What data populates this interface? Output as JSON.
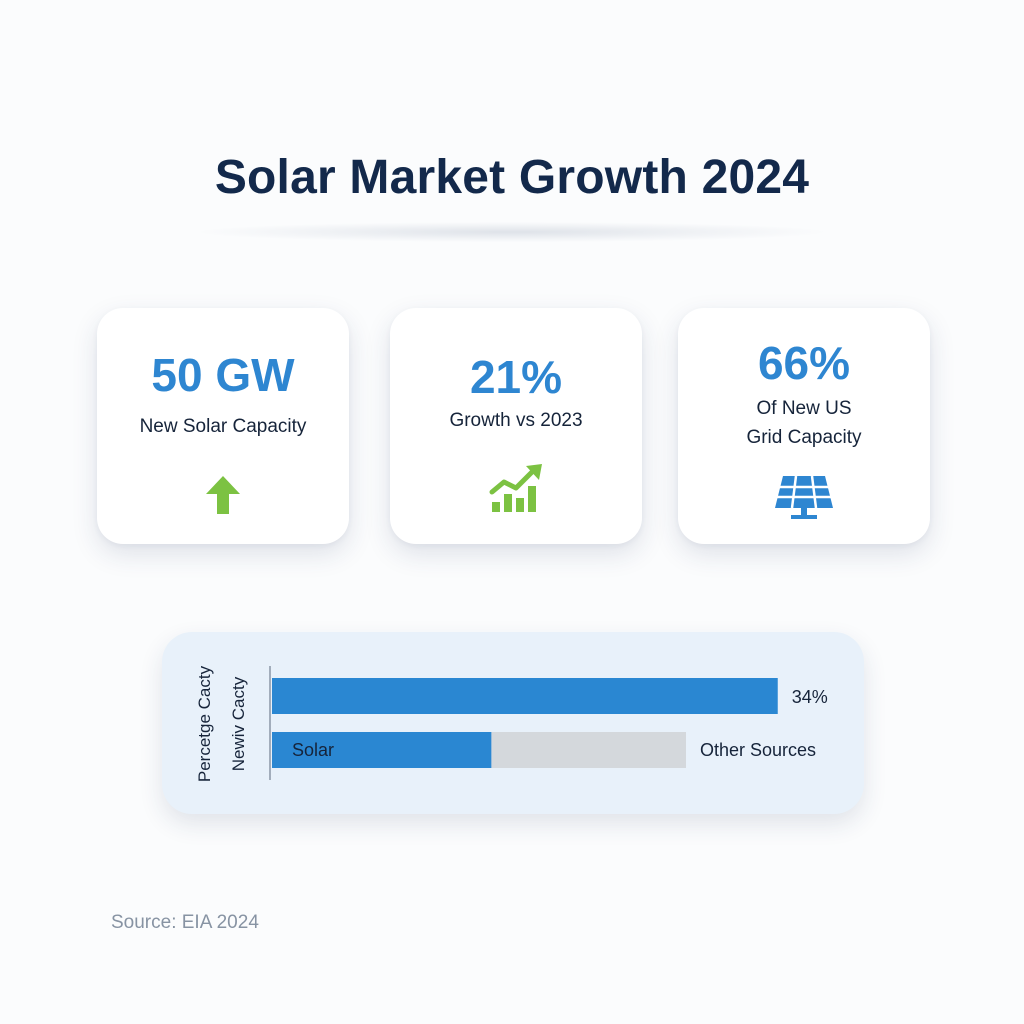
{
  "title": "Solar Market Growth 2024",
  "cards": [
    {
      "value": "50 GW",
      "label": "New Solar Capacity",
      "icon": "arrow-up-icon",
      "icon_color": "#7cc242"
    },
    {
      "value": "21%",
      "label": "Growth vs 2023",
      "icon": "growth-chart-icon",
      "icon_color": "#7cc242"
    },
    {
      "value": "66%",
      "label_lines": [
        "Of New US",
        "Grid Capacity"
      ],
      "icon": "solar-panel-icon",
      "icon_color": "#2e86d1"
    }
  ],
  "chart_data": {
    "type": "bar",
    "orientation": "horizontal",
    "y_axis_labels": [
      "Percetge Cacty",
      "Newiv Cacty"
    ],
    "bars": [
      {
        "value": 34,
        "value_label": "34%",
        "color": "#2a87d2"
      },
      {
        "segments": [
          {
            "label": "Solar",
            "color": "#2a87d2"
          },
          {
            "label": "Other Sources",
            "color": "#d4d8dc"
          }
        ],
        "solar_share": 0.53
      }
    ],
    "xlim": [
      0,
      40
    ],
    "grid": false,
    "legend": "none"
  },
  "source": "Source: EIA 2024"
}
